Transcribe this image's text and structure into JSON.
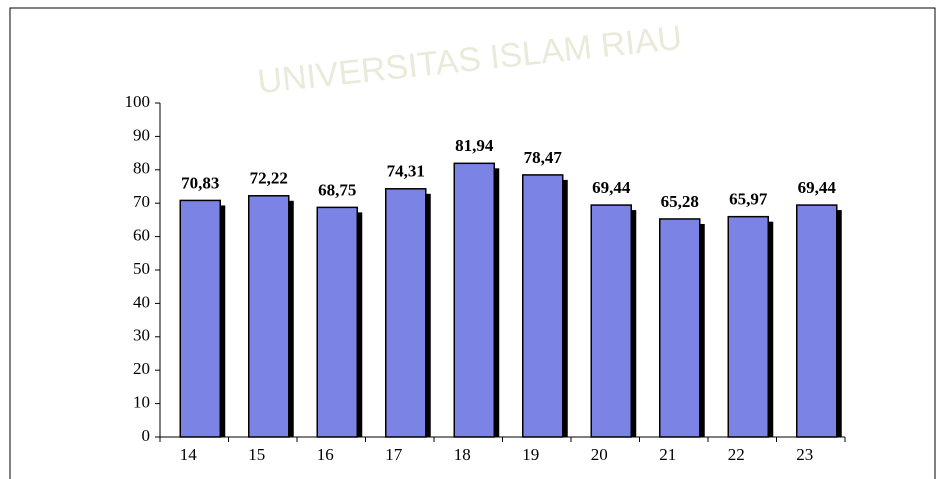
{
  "chart_data": {
    "type": "bar",
    "watermark": "UNIVERSITAS ISLAM RIAU",
    "categories": [
      "14",
      "15",
      "16",
      "17",
      "18",
      "19",
      "20",
      "21",
      "22",
      "23"
    ],
    "values": [
      70.83,
      72.22,
      68.75,
      74.31,
      81.94,
      78.47,
      69.44,
      65.28,
      65.97,
      69.44
    ],
    "value_labels": [
      "70,83",
      "72,22",
      "68,75",
      "74,31",
      "81,94",
      "78,47",
      "69,44",
      "65,28",
      "65,97",
      "69,44"
    ],
    "color": "#7b84e4",
    "ylim": [
      0,
      100
    ],
    "yticks": [
      0,
      10,
      20,
      30,
      40,
      50,
      60,
      70,
      80,
      90,
      100
    ],
    "grid": false
  }
}
